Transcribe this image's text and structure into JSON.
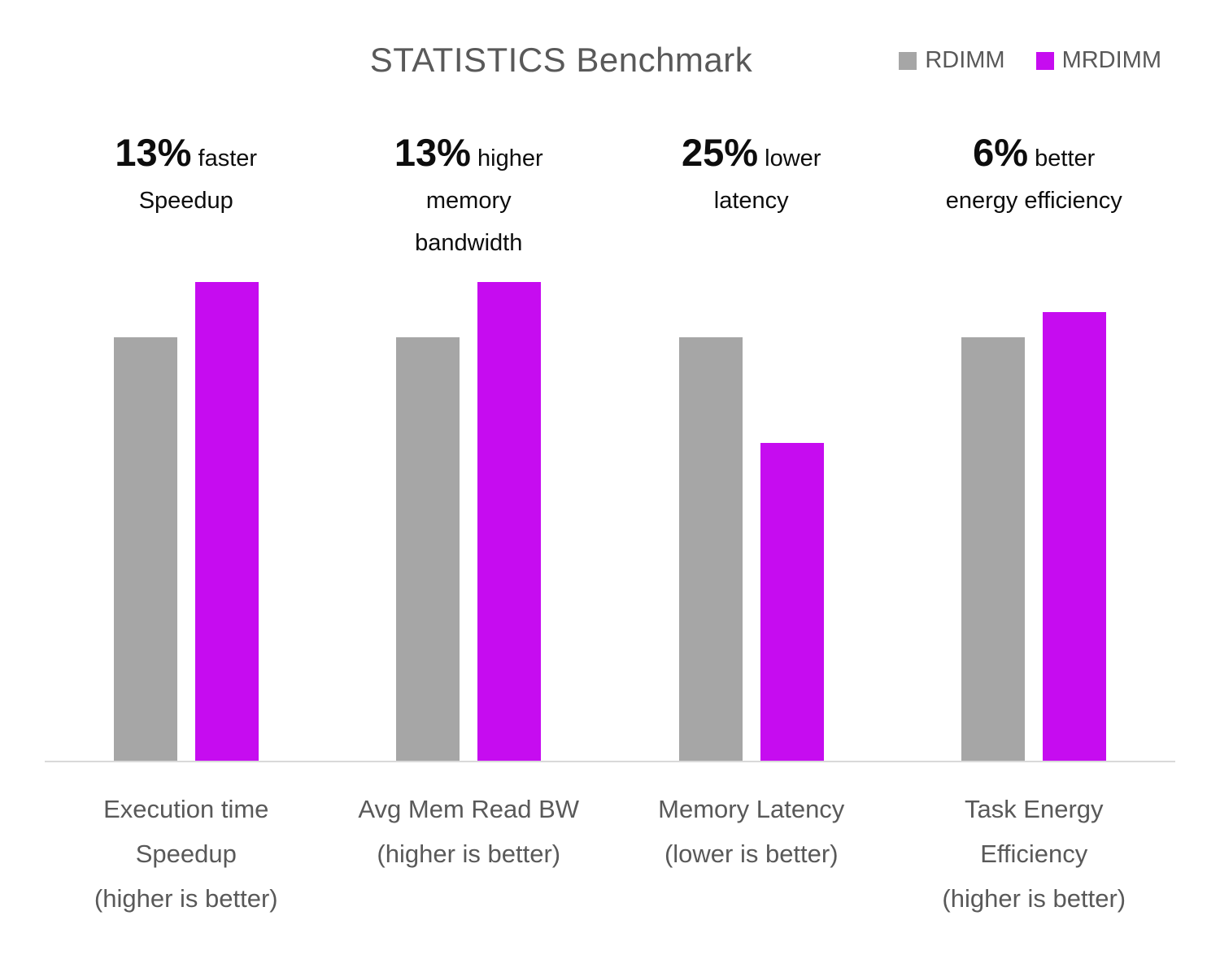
{
  "chart_data": {
    "type": "bar",
    "title": "STATISTICS Benchmark",
    "categories": [
      "Execution time Speedup (higher is better)",
      "Avg Mem Read BW (higher is better)",
      "Memory Latency (lower is better)",
      "Task Energy Efficiency (higher is better)"
    ],
    "series": [
      {
        "name": "RDIMM",
        "color": "#a6a6a6",
        "values": [
          1.0,
          1.0,
          1.0,
          1.0
        ]
      },
      {
        "name": "MRDIMM",
        "color": "#c60cf0",
        "values": [
          1.13,
          1.13,
          0.75,
          1.06
        ]
      }
    ],
    "ylabel": "",
    "xlabel": "",
    "ylim": [
      0,
      1.22
    ],
    "grid": false,
    "legend_position": "top-right",
    "axis_line_color": "#d9d9d9",
    "values_are": "normalized vs RDIMM = 1.0"
  },
  "annotations": [
    {
      "value": "13%",
      "qualifier": "faster",
      "extra_lines": [
        "Speedup"
      ]
    },
    {
      "value": "13%",
      "qualifier": "higher",
      "extra_lines": [
        "memory",
        "bandwidth"
      ]
    },
    {
      "value": "25%",
      "qualifier": "lower",
      "extra_lines": [
        "latency"
      ]
    },
    {
      "value": "6%",
      "qualifier": "better",
      "extra_lines": [
        "energy efficiency"
      ]
    }
  ],
  "category_label_lines": [
    [
      "Execution time",
      "Speedup",
      "(higher is better)"
    ],
    [
      "Avg Mem Read BW",
      "(higher is better)"
    ],
    [
      "Memory Latency",
      "(lower is better)"
    ],
    [
      "Task Energy",
      "Efficiency",
      "(higher is better)"
    ]
  ]
}
